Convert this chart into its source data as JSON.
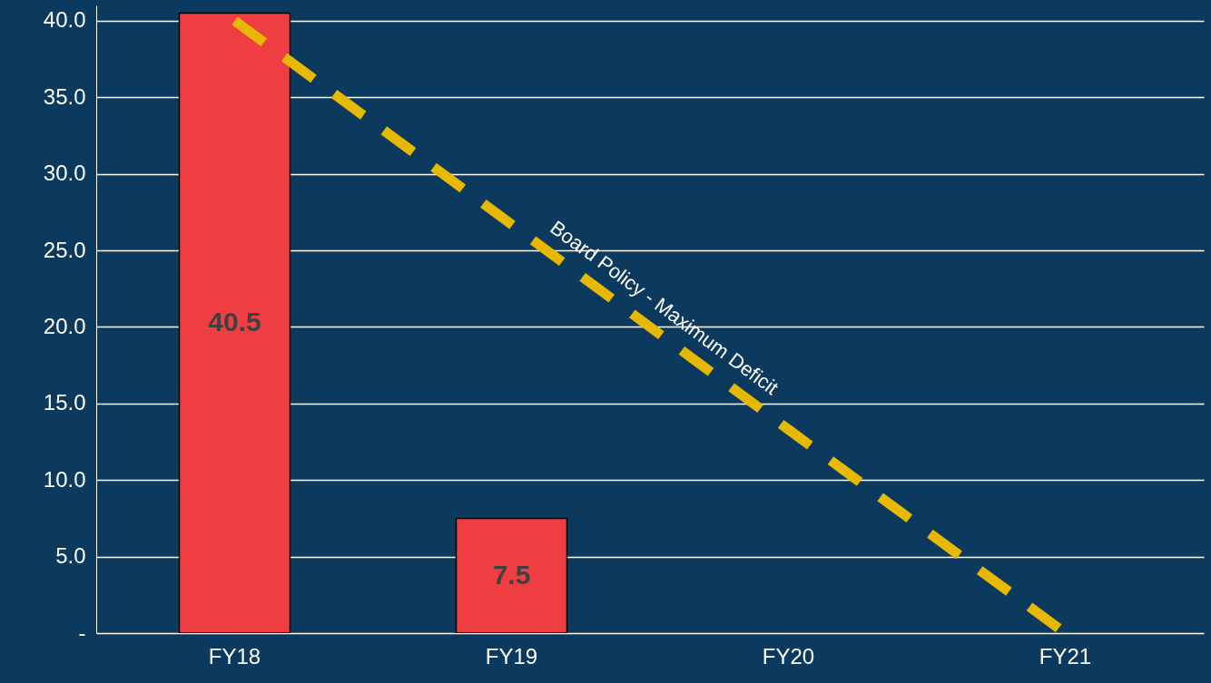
{
  "chart_data": {
    "type": "bar",
    "categories": [
      "FY18",
      "FY19",
      "FY20",
      "FY21"
    ],
    "series": [
      {
        "color": "#ef3e42",
        "values": [
          40.5,
          7.5,
          null,
          null
        ],
        "value_labels": [
          "40.5",
          "7.5",
          null,
          null
        ]
      },
      {
        "type": "line",
        "name": "Board Policy - Maximum Deficit",
        "color": "#e6b800",
        "values": [
          40,
          26.7,
          13.3,
          0
        ],
        "line_style": "dashed"
      }
    ],
    "ylim": [
      0,
      41
    ],
    "yticks": [
      {
        "value": 0,
        "label": "-"
      },
      {
        "value": 5,
        "label": "5.0"
      },
      {
        "value": 10,
        "label": "10.0"
      },
      {
        "value": 15,
        "label": "15.0"
      },
      {
        "value": 20,
        "label": "20.0"
      },
      {
        "value": 25,
        "label": "25.0"
      },
      {
        "value": 30,
        "label": "30.0"
      },
      {
        "value": 35,
        "label": "35.0"
      },
      {
        "value": 40,
        "label": "40.0"
      }
    ],
    "grid": "y",
    "legend": false,
    "marker": "none"
  }
}
